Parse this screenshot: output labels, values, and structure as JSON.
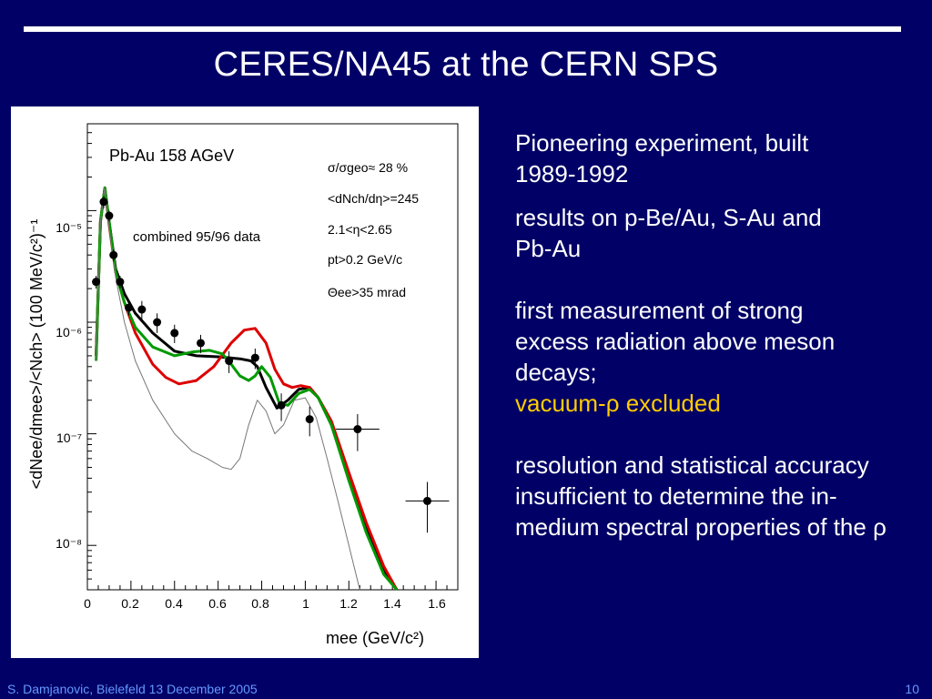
{
  "slide": {
    "title": "CERES/NA45 at the CERN SPS",
    "footer_left": "S. Damjanovic, Bielefeld 13 December 2005",
    "page_number": "10",
    "colors": {
      "background": "#000066",
      "text": "#ffffff",
      "highlight": "#ffcc00",
      "footer": "#6699ff"
    }
  },
  "bullets": [
    {
      "text": "Pioneering experiment, built 1989-1992"
    },
    {
      "text": "results on p-Be/Au, S-Au and Pb-Au"
    },
    {
      "text": "first measurement of strong excess radiation above meson decays;",
      "highlight": "vacuum-ρ excluded"
    },
    {
      "text": "resolution and statistical accuracy insufficient to determine the in-medium spectral properties of the ρ"
    }
  ],
  "chart_data": {
    "type": "scatter",
    "ylabel": "<dNee/dmee>/<Nch> (100 MeV/c²)⁻¹",
    "xlabel": "mee (GeV/c²)",
    "xlim": [
      0,
      1.7
    ],
    "ylim": [
      4e-09,
      6e-05
    ],
    "yscale": "log",
    "x_ticks": [
      "0",
      "0.2",
      "0.4",
      "0.6",
      "0.8",
      "1",
      "1.2",
      "1.4",
      "1.6"
    ],
    "y_ticks": [
      "10⁻⁵",
      "10⁻⁶",
      "10⁻⁷",
      "10⁻⁸"
    ],
    "annotations": {
      "system": "Pb-Au 158 AGeV",
      "dataset": "combined 95/96 data",
      "cuts": [
        "σ/σgeo≈ 28 %",
        "<dNch/dη>=245",
        "2.1<η<2.65",
        "pt>0.2 GeV/c",
        "Θee>35 mrad"
      ]
    },
    "series": [
      {
        "kind": "data",
        "color": "#000000",
        "x": [
          0.04,
          0.075,
          0.1,
          0.12,
          0.15,
          0.19,
          0.25,
          0.32,
          0.4,
          0.52,
          0.65,
          0.77,
          0.89,
          1.02,
          1.24,
          1.56
        ],
        "y": [
          2.3e-06,
          1.2e-05,
          9e-06,
          4e-06,
          2.3e-06,
          1.35e-06,
          1.3e-06,
          1e-06,
          8e-07,
          6.5e-07,
          4.5e-07,
          4.8e-07,
          1.8e-07,
          1.35e-07,
          1.1e-07,
          2.5e-08
        ],
        "yerr": [
          3e-07,
          1.5e-06,
          1e-06,
          5e-07,
          3e-07,
          2e-07,
          2.5e-07,
          2e-07,
          1.5e-07,
          1.2e-07,
          1e-07,
          1e-07,
          5e-08,
          4e-08,
          4e-08,
          1.2e-08
        ],
        "xerr": [
          0,
          0,
          0,
          0,
          0,
          0,
          0,
          0,
          0,
          0,
          0,
          0,
          0,
          0,
          0.1,
          0.1
        ]
      },
      {
        "kind": "model",
        "color": "#000000",
        "width": 3,
        "x": [
          0.04,
          0.06,
          0.08,
          0.1,
          0.13,
          0.17,
          0.22,
          0.3,
          0.4,
          0.5,
          0.6,
          0.7,
          0.75,
          0.78,
          0.82,
          0.87,
          0.92,
          0.97,
          1.02,
          1.06,
          1.12,
          1.2,
          1.28,
          1.36,
          1.42
        ],
        "y": [
          5e-07,
          8e-06,
          1.6e-05,
          8e-06,
          3e-06,
          1.8e-06,
          1.2e-06,
          8e-07,
          5.5e-07,
          5e-07,
          4.9e-07,
          4.7e-07,
          4.5e-07,
          4e-07,
          2.6e-07,
          1.7e-07,
          2e-07,
          2.5e-07,
          2.6e-07,
          2.1e-07,
          1.2e-07,
          4e-08,
          1.4e-08,
          6e-09,
          4e-09
        ]
      },
      {
        "kind": "model",
        "color": "#dd0000",
        "width": 3,
        "x": [
          0.04,
          0.06,
          0.08,
          0.1,
          0.13,
          0.17,
          0.22,
          0.3,
          0.36,
          0.42,
          0.5,
          0.58,
          0.66,
          0.72,
          0.77,
          0.82,
          0.86,
          0.9,
          0.94,
          0.98,
          1.02,
          1.06,
          1.12,
          1.2,
          1.28,
          1.36,
          1.42
        ],
        "y": [
          5e-07,
          8e-06,
          1.6e-05,
          7.5e-06,
          2.8e-06,
          1.5e-06,
          8e-07,
          4.2e-07,
          3.2e-07,
          2.8e-07,
          3e-07,
          4e-07,
          6.5e-07,
          8.5e-07,
          8.8e-07,
          6.5e-07,
          3.8e-07,
          2.8e-07,
          2.6e-07,
          2.7e-07,
          2.6e-07,
          2.1e-07,
          1.3e-07,
          4.5e-08,
          1.6e-08,
          6.5e-09,
          4e-09
        ]
      },
      {
        "kind": "model",
        "color": "#009900",
        "width": 3,
        "x": [
          0.04,
          0.06,
          0.08,
          0.1,
          0.13,
          0.17,
          0.22,
          0.3,
          0.4,
          0.48,
          0.56,
          0.62,
          0.66,
          0.7,
          0.74,
          0.77,
          0.8,
          0.84,
          0.88,
          0.92,
          0.97,
          1.02,
          1.06,
          1.12,
          1.2,
          1.28,
          1.36,
          1.42
        ],
        "y": [
          4.5e-07,
          8e-06,
          1.6e-05,
          8e-06,
          2.8e-06,
          1.5e-06,
          9e-07,
          6e-07,
          5e-07,
          5.4e-07,
          5.6e-07,
          5.2e-07,
          4.2e-07,
          3.3e-07,
          3e-07,
          3.3e-07,
          4e-07,
          3.2e-07,
          1.9e-07,
          1.8e-07,
          2.3e-07,
          2.5e-07,
          2.1e-07,
          1.2e-07,
          3.8e-08,
          1.3e-08,
          5.5e-09,
          4e-09
        ]
      },
      {
        "kind": "model",
        "color": "#777777",
        "width": 1,
        "x": [
          0.04,
          0.06,
          0.08,
          0.1,
          0.13,
          0.17,
          0.22,
          0.3,
          0.4,
          0.48,
          0.55,
          0.62,
          0.66,
          0.7,
          0.74,
          0.78,
          0.82,
          0.86,
          0.9,
          0.95,
          1.0,
          1.05,
          1.1,
          1.15,
          1.2,
          1.25
        ],
        "y": [
          4.5e-07,
          8e-06,
          1.6e-05,
          7e-06,
          2.5e-06,
          1e-06,
          4.5e-07,
          2e-07,
          1e-07,
          7e-08,
          6e-08,
          5e-08,
          4.8e-08,
          6e-08,
          1.2e-07,
          2e-07,
          1.6e-07,
          1e-07,
          1.2e-07,
          2e-07,
          2.1e-07,
          1.4e-07,
          6e-08,
          2.5e-08,
          1e-08,
          4e-09
        ]
      }
    ]
  }
}
